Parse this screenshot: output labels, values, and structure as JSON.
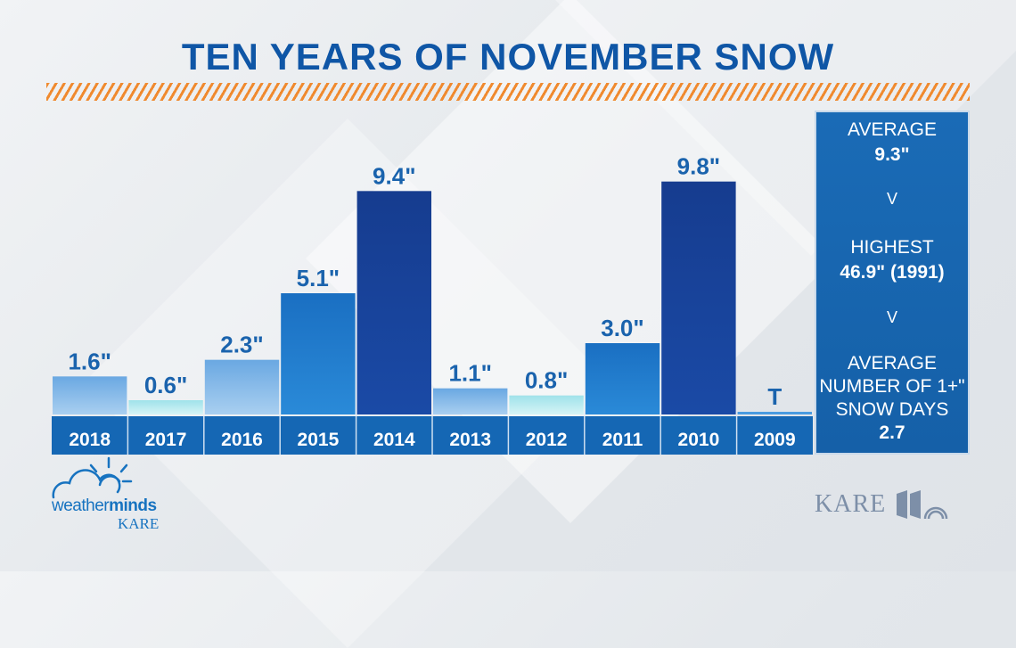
{
  "title": "TEN YEARS OF NOVEMBER SNOW",
  "chart_data": {
    "type": "bar",
    "title": "TEN YEARS OF NOVEMBER SNOW",
    "categories": [
      "2018",
      "2017",
      "2016",
      "2015",
      "2014",
      "2013",
      "2012",
      "2011",
      "2010",
      "2009"
    ],
    "values": [
      1.6,
      0.6,
      2.3,
      5.1,
      9.4,
      1.1,
      0.8,
      3.0,
      9.8,
      0
    ],
    "data_labels": [
      "1.6\"",
      "0.6\"",
      "2.3\"",
      "5.1\"",
      "9.4\"",
      "1.1\"",
      "0.8\"",
      "3.0\"",
      "9.8\"",
      "T"
    ],
    "ylim": [
      0,
      10.5
    ],
    "grid": false,
    "legend": "none"
  },
  "stats": {
    "average_label": "AVERAGE",
    "average_value": "9.3\"",
    "sep1": "V",
    "highest_label": "HIGHEST",
    "highest_value": "46.9\" (1991)",
    "sep2": "V",
    "days_line1": "AVERAGE",
    "days_line2": "NUMBER OF 1+\"",
    "days_line3": "SNOW DAYS",
    "days_value": "2.7"
  },
  "logos": {
    "weatherminds_light": "weather",
    "weatherminds_bold": "minds",
    "weatherminds_sub": "KARE",
    "kare": "KARE"
  },
  "colors": {
    "title": "#0f56a6",
    "axis_band": "#1567b4",
    "accent_stripes": "#f08a2f",
    "bar_dark": "#163c8f",
    "bar_mid": "#1a78c8",
    "bar_light": "#7fb4e6",
    "bar_pale": "#b8ecef"
  }
}
